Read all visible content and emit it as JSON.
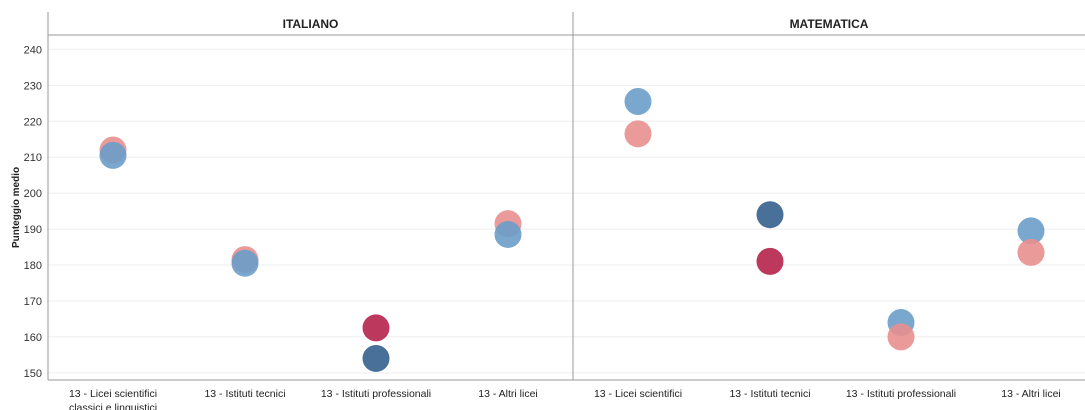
{
  "chart_data": {
    "type": "scatter",
    "ylabel": "Punteggio medio",
    "ylim": [
      148,
      244
    ],
    "yticks": [
      150,
      160,
      170,
      180,
      190,
      200,
      210,
      220,
      230,
      240
    ],
    "grid": true,
    "colors": {
      "light_red": "#e88f8e",
      "dark_red": "#b5224a",
      "light_blue": "#6b9dc9",
      "dark_blue": "#34618e"
    },
    "panels": [
      {
        "title": "ITALIANO",
        "categories": [
          [
            "13 - Licei scientifici",
            "classici e linguistici"
          ],
          [
            "13 - Istituti tecnici"
          ],
          [
            "13 - Istituti professionali"
          ],
          [
            "13 - Altri licei"
          ]
        ],
        "points": [
          {
            "category": 0,
            "value": 212,
            "color": "light_red"
          },
          {
            "category": 0,
            "value": 210.5,
            "color": "light_blue"
          },
          {
            "category": 1,
            "value": 181.5,
            "color": "light_red"
          },
          {
            "category": 1,
            "value": 180.5,
            "color": "light_blue"
          },
          {
            "category": 2,
            "value": 162.5,
            "color": "dark_red"
          },
          {
            "category": 2,
            "value": 154,
            "color": "dark_blue"
          },
          {
            "category": 3,
            "value": 191.5,
            "color": "light_red"
          },
          {
            "category": 3,
            "value": 188.5,
            "color": "light_blue"
          }
        ]
      },
      {
        "title": "MATEMATICA",
        "categories": [
          [
            "13 - Licei scientifici"
          ],
          [
            "13 - Istituti tecnici"
          ],
          [
            "13 - Istituti professionali"
          ],
          [
            "13 - Altri licei"
          ]
        ],
        "points": [
          {
            "category": 0,
            "value": 225.5,
            "color": "light_blue"
          },
          {
            "category": 0,
            "value": 216.5,
            "color": "light_red"
          },
          {
            "category": 1,
            "value": 194,
            "color": "dark_blue"
          },
          {
            "category": 1,
            "value": 181,
            "color": "dark_red"
          },
          {
            "category": 2,
            "value": 164,
            "color": "light_blue"
          },
          {
            "category": 2,
            "value": 160,
            "color": "light_red"
          },
          {
            "category": 3,
            "value": 189.5,
            "color": "light_blue"
          },
          {
            "category": 3,
            "value": 183.5,
            "color": "light_red"
          }
        ]
      }
    ]
  }
}
